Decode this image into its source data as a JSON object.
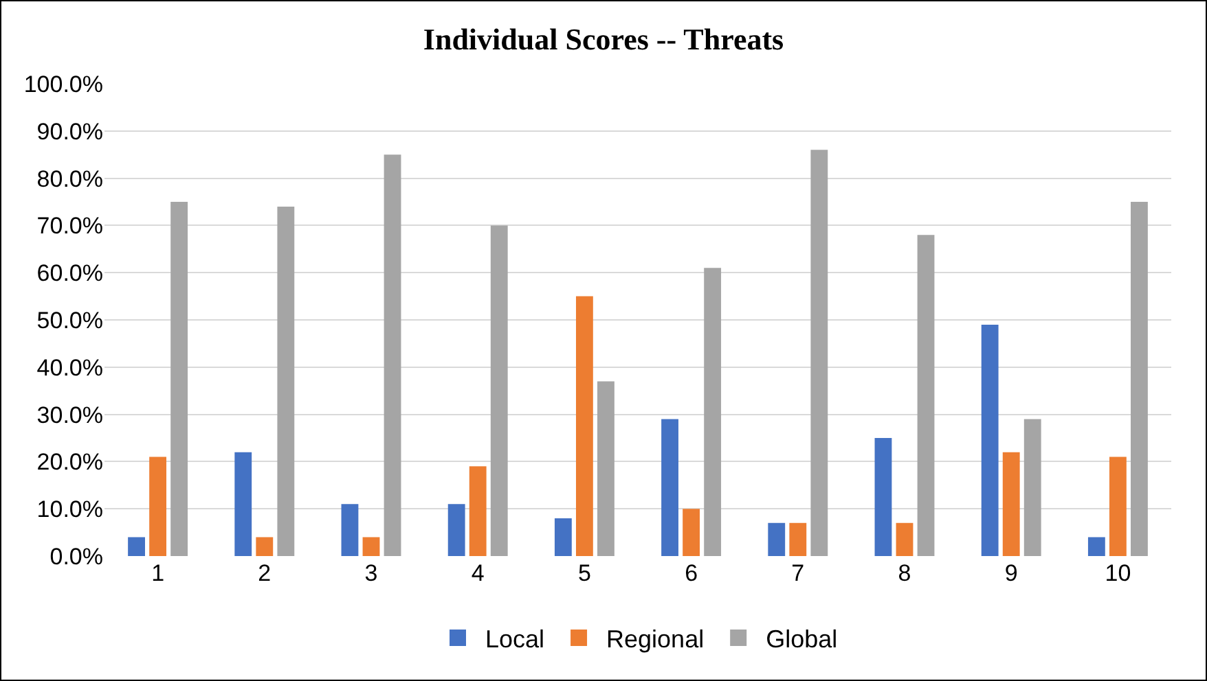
{
  "chart_data": {
    "type": "bar",
    "title": "Individual Scores -- Threats",
    "categories": [
      "1",
      "2",
      "3",
      "4",
      "5",
      "6",
      "7",
      "8",
      "9",
      "10"
    ],
    "series": [
      {
        "name": "Local",
        "color": "#4472c4",
        "values": [
          4,
          22,
          11,
          11,
          8,
          29,
          7,
          25,
          49,
          4
        ]
      },
      {
        "name": "Regional",
        "color": "#ed7d31",
        "values": [
          21,
          4,
          4,
          19,
          55,
          10,
          7,
          7,
          22,
          21
        ]
      },
      {
        "name": "Global",
        "color": "#a5a5a5",
        "values": [
          75,
          74,
          85,
          70,
          37,
          61,
          86,
          68,
          29,
          75
        ]
      }
    ],
    "ylim": [
      0,
      100
    ],
    "yticks": [
      {
        "value": 0,
        "label": "0.0%"
      },
      {
        "value": 10,
        "label": "10.0%"
      },
      {
        "value": 20,
        "label": "20.0%"
      },
      {
        "value": 30,
        "label": "30.0%"
      },
      {
        "value": 40,
        "label": "40.0%"
      },
      {
        "value": 50,
        "label": "50.0%"
      },
      {
        "value": 60,
        "label": "60.0%"
      },
      {
        "value": 70,
        "label": "70.0%"
      },
      {
        "value": 80,
        "label": "80.0%"
      },
      {
        "value": 90,
        "label": "90.0%"
      },
      {
        "value": 100,
        "label": "100.0%"
      }
    ],
    "grid": "y",
    "legend": "bottom"
  }
}
